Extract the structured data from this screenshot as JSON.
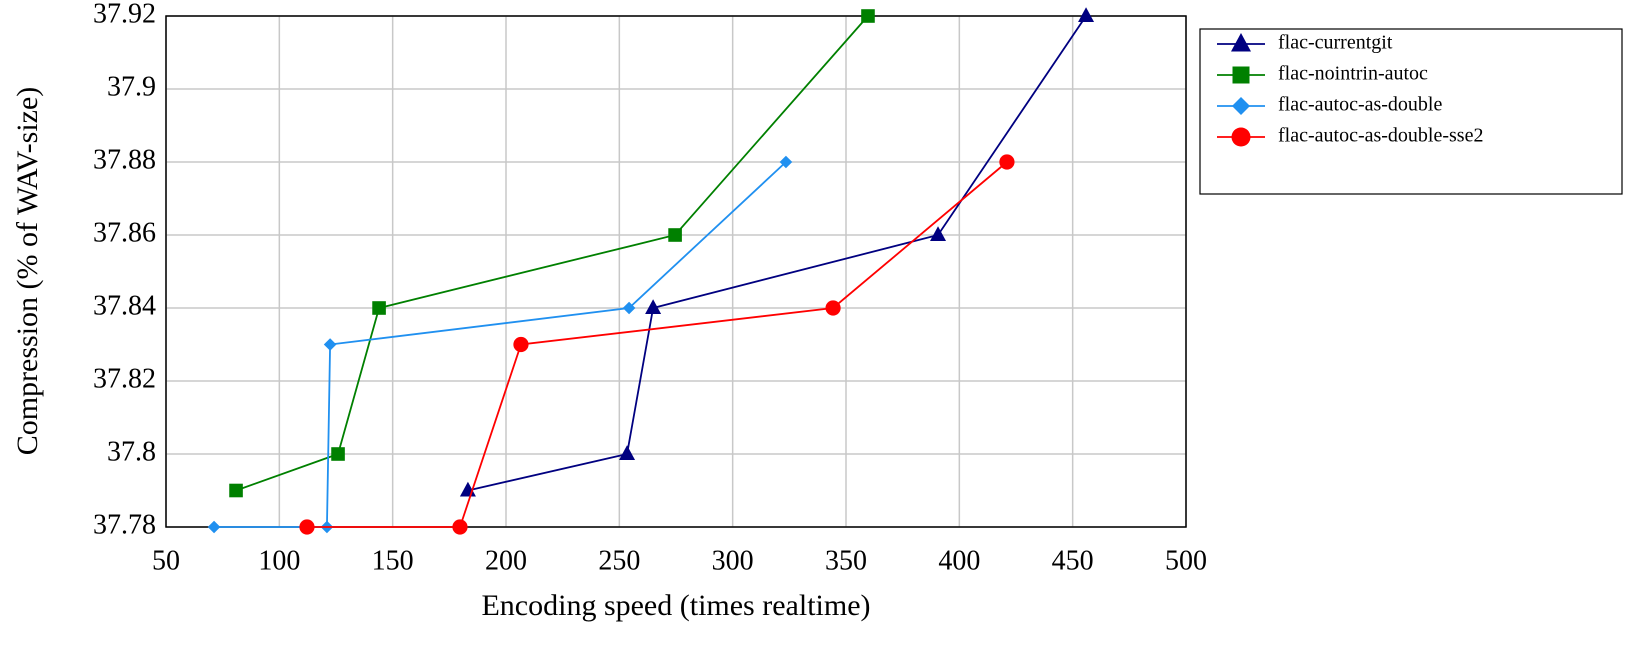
{
  "chart_data": {
    "type": "line",
    "xlabel": "Encoding speed (times realtime)",
    "ylabel": "Compression (% of WAV-size)",
    "xlim": [
      50,
      500
    ],
    "xticks": [
      50,
      100,
      150,
      200,
      250,
      300,
      350,
      400,
      450,
      500
    ],
    "ylim": [
      37.78,
      37.92
    ],
    "yticks": [
      37.78,
      37.8,
      37.82,
      37.84,
      37.86,
      37.88,
      37.9,
      37.92
    ],
    "grid": true,
    "legend": "outside-right",
    "series": [
      {
        "name": "flac-currentgit",
        "color": "#000080",
        "marker": "triangle",
        "x": [
          183.2,
          253.4,
          264.9,
          390.6,
          455.9
        ],
        "values": [
          37.79,
          37.8,
          37.84,
          37.86,
          37.92
        ]
      },
      {
        "name": "flac-nointrin-autoc",
        "color": "#008000",
        "marker": "square",
        "x": [
          80.9,
          125.9,
          144,
          274.6,
          359.7
        ],
        "values": [
          37.79,
          37.8,
          37.84,
          37.86,
          37.92
        ]
      },
      {
        "name": "flac-autoc-as-double",
        "color": "#2090f0",
        "marker": "diamond",
        "x": [
          71.2,
          121,
          122.4,
          254.3,
          323.5
        ],
        "values": [
          37.78,
          37.78,
          37.83,
          37.84,
          37.88
        ]
      },
      {
        "name": "flac-autoc-as-double-sse2",
        "color": "#ff0000",
        "marker": "circle",
        "x": [
          112.2,
          179.7,
          206.6,
          344.3,
          421
        ],
        "values": [
          37.78,
          37.78,
          37.83,
          37.84,
          37.88
        ]
      }
    ]
  }
}
